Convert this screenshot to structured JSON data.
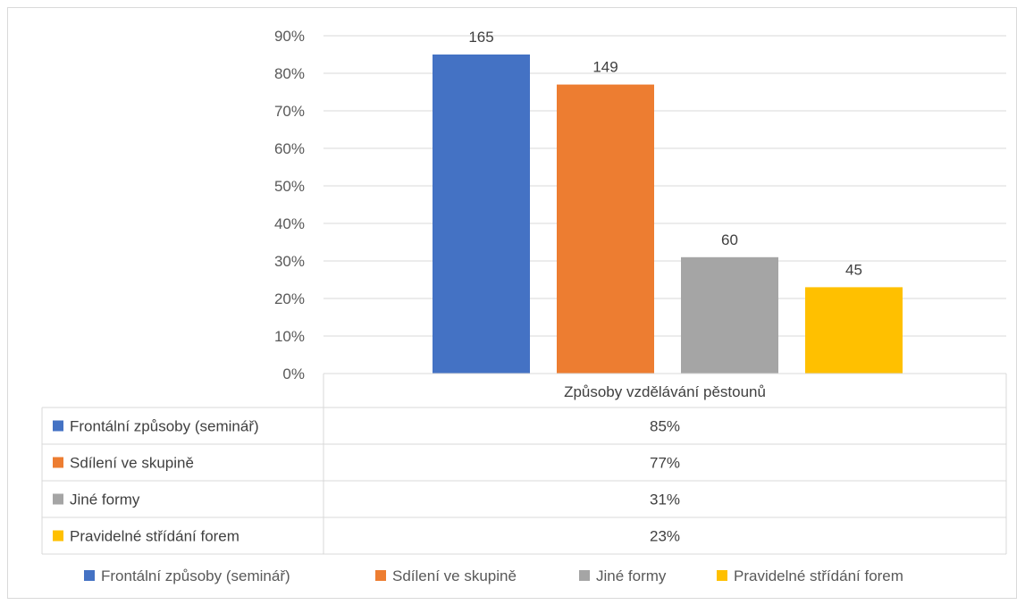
{
  "chart_data": {
    "type": "bar",
    "categories": [
      "Způsoby vzdělávání pěstounů"
    ],
    "series": [
      {
        "name": "Frontální způsoby (seminář)",
        "values": [
          85
        ],
        "data_label": "165",
        "table_value": "85%",
        "color": "#4472C4"
      },
      {
        "name": "Sdílení ve skupině",
        "values": [
          77
        ],
        "data_label": "149",
        "table_value": "77%",
        "color": "#ED7D31"
      },
      {
        "name": "Jiné formy",
        "values": [
          31
        ],
        "data_label": "60",
        "table_value": "31%",
        "color": "#A5A5A5"
      },
      {
        "name": "Pravidelné střídání forem",
        "values": [
          23
        ],
        "data_label": "45",
        "table_value": "23%",
        "color": "#FFC000"
      }
    ],
    "ylim": [
      0,
      90
    ],
    "yticks": [
      0,
      10,
      20,
      30,
      40,
      50,
      60,
      70,
      80,
      90
    ],
    "ytick_labels": [
      "0%",
      "10%",
      "20%",
      "30%",
      "40%",
      "50%",
      "60%",
      "70%",
      "80%",
      "90%"
    ],
    "grid": true,
    "data_table": true,
    "legend": "bottom"
  }
}
